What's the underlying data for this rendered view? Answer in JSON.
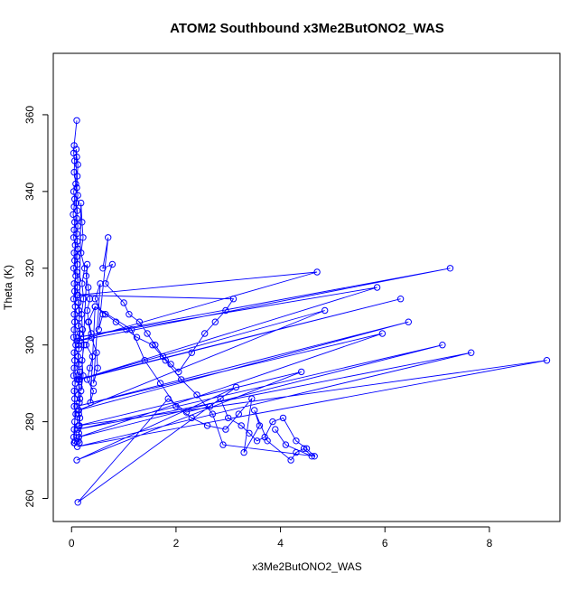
{
  "chart_data": {
    "type": "scatter",
    "connected": true,
    "title": "ATOM2 Southbound x3Me2ButONO2_WAS",
    "xlabel": "x3Me2ButONO2_WAS",
    "ylabel": "Theta (K)",
    "xlim": [
      -0.35,
      9.35
    ],
    "ylim": [
      254,
      376
    ],
    "xticks": [
      0,
      2,
      4,
      6,
      8
    ],
    "yticks": [
      260,
      280,
      300,
      320,
      340,
      360
    ],
    "grid": false,
    "legend": "none",
    "colors": {
      "series": "#0000ff",
      "axes": "#000000",
      "background": "#ffffff"
    },
    "marker": "open-circle",
    "series": [
      {
        "x": [
          0.1,
          0.05,
          0.04,
          0.06,
          0.05,
          0.08,
          0.04,
          0.06,
          0.05,
          0.03,
          0.06,
          0.05,
          0.04,
          0.07,
          0.05,
          0.06,
          0.04,
          0.08,
          0.05,
          0.06,
          0.04,
          0.07,
          0.05,
          0.06,
          0.05,
          0.04,
          0.08,
          0.05,
          0.06,
          0.05,
          0.04,
          0.07,
          0.05,
          0.06,
          0.05,
          0.08,
          0.06,
          0.05,
          0.04,
          0.07,
          0.05,
          0.06,
          0.09,
          0.1,
          0.12,
          0.11,
          0.1,
          0.12,
          0.09,
          0.11,
          0.1,
          0.12,
          0.1,
          0.11,
          0.12,
          0.1,
          0.11,
          0.1,
          0.12,
          0.11,
          0.1,
          0.13,
          0.14,
          0.15,
          0.13,
          0.16,
          0.15,
          0.14,
          0.12,
          0.15,
          0.16,
          0.14,
          0.15,
          0.13,
          0.15,
          0.14,
          0.16,
          0.15,
          0.14,
          0.13,
          0.15,
          0.14,
          0.16,
          0.12,
          0.14,
          0.18,
          0.2,
          0.22,
          0.18,
          0.25,
          0.2,
          0.23,
          0.19,
          0.21,
          0.24,
          0.2,
          0.22,
          0.18,
          0.3,
          0.28,
          0.32,
          0.35,
          0.3,
          0.33,
          0.38,
          0.28,
          0.4,
          0.35,
          0.3,
          0.42,
          0.36,
          0.45,
          0.32,
          0.38,
          0.48,
          0.5,
          0.42,
          0.55,
          0.45,
          0.6,
          0.52,
          0.7,
          0.6,
          0.78,
          0.65,
          1.0,
          1.1,
          1.3,
          1.45,
          1.6,
          1.75,
          1.9,
          2.05,
          2.3,
          2.55,
          2.75,
          2.95,
          3.1,
          0.12,
          4.7,
          0.1,
          7.25,
          0.12,
          5.85,
          0.15,
          6.3,
          0.11,
          4.85,
          0.13,
          6.45,
          0.1,
          5.95,
          0.14,
          7.1,
          0.12,
          7.65,
          0.11,
          9.1,
          0.13,
          4.4,
          0.1,
          3.15,
          0.12,
          1.85,
          2.2,
          2.65,
          2.85,
          3.0,
          3.25,
          3.4,
          3.55,
          3.7,
          3.85,
          4.05,
          4.3,
          4.5,
          4.65,
          2.9,
          2.7,
          2.4,
          2.1,
          1.8,
          1.55,
          1.25,
          1.05,
          0.85,
          0.65,
          0.45,
          1.15,
          1.4,
          1.7,
          2.0,
          2.3,
          2.6,
          2.95,
          3.2,
          3.45,
          3.3,
          3.6,
          3.5,
          3.75,
          4.2,
          4.3,
          4.45,
          4.6,
          4.1,
          3.9
        ],
        "y": [
          358.5,
          352,
          350,
          348,
          345,
          342,
          340,
          338,
          336,
          334,
          332,
          330,
          328,
          326,
          324,
          322,
          320,
          318,
          316,
          314,
          312,
          310,
          308,
          306,
          304,
          302,
          300,
          298,
          296,
          294,
          292,
          290,
          288,
          286,
          284,
          282,
          280,
          278,
          276,
          275,
          274.5,
          274.5,
          351,
          349,
          347,
          344,
          341,
          339,
          337,
          335,
          333,
          331,
          329,
          327,
          325,
          323,
          321,
          319,
          317,
          315,
          313,
          311,
          309,
          307,
          305,
          303,
          301,
          299,
          297,
          295,
          293,
          291,
          289,
          287,
          285,
          283,
          281,
          279,
          277,
          275,
          274.5,
          282,
          286,
          292,
          300,
          337,
          332,
          328,
          324,
          320,
          316,
          312,
          308,
          304,
          300,
          296,
          292,
          288,
          321,
          318,
          315,
          312,
          309,
          306,
          303,
          300,
          297,
          294,
          291,
          288,
          285,
          310,
          306,
          302,
          298,
          294,
          290,
          316,
          312,
          308,
          304,
          328,
          320,
          321,
          316,
          311,
          308,
          306,
          303,
          300,
          297,
          295,
          293,
          298,
          303,
          306,
          309,
          312,
          313,
          319,
          301,
          320,
          302,
          315,
          291,
          312,
          291,
          309,
          283,
          306,
          284,
          303,
          276,
          300,
          278,
          298,
          273.5,
          296,
          279,
          293,
          270,
          289,
          259,
          286,
          282.5,
          284,
          286,
          281,
          279,
          277,
          275,
          276,
          280,
          281,
          275,
          273,
          271,
          274,
          282,
          287,
          291,
          296,
          300,
          302,
          304,
          306,
          308,
          310,
          304,
          296,
          290,
          284,
          281,
          279,
          278,
          282,
          286,
          272,
          279,
          283,
          275,
          270,
          272,
          273,
          271,
          274,
          278
        ]
      }
    ]
  }
}
